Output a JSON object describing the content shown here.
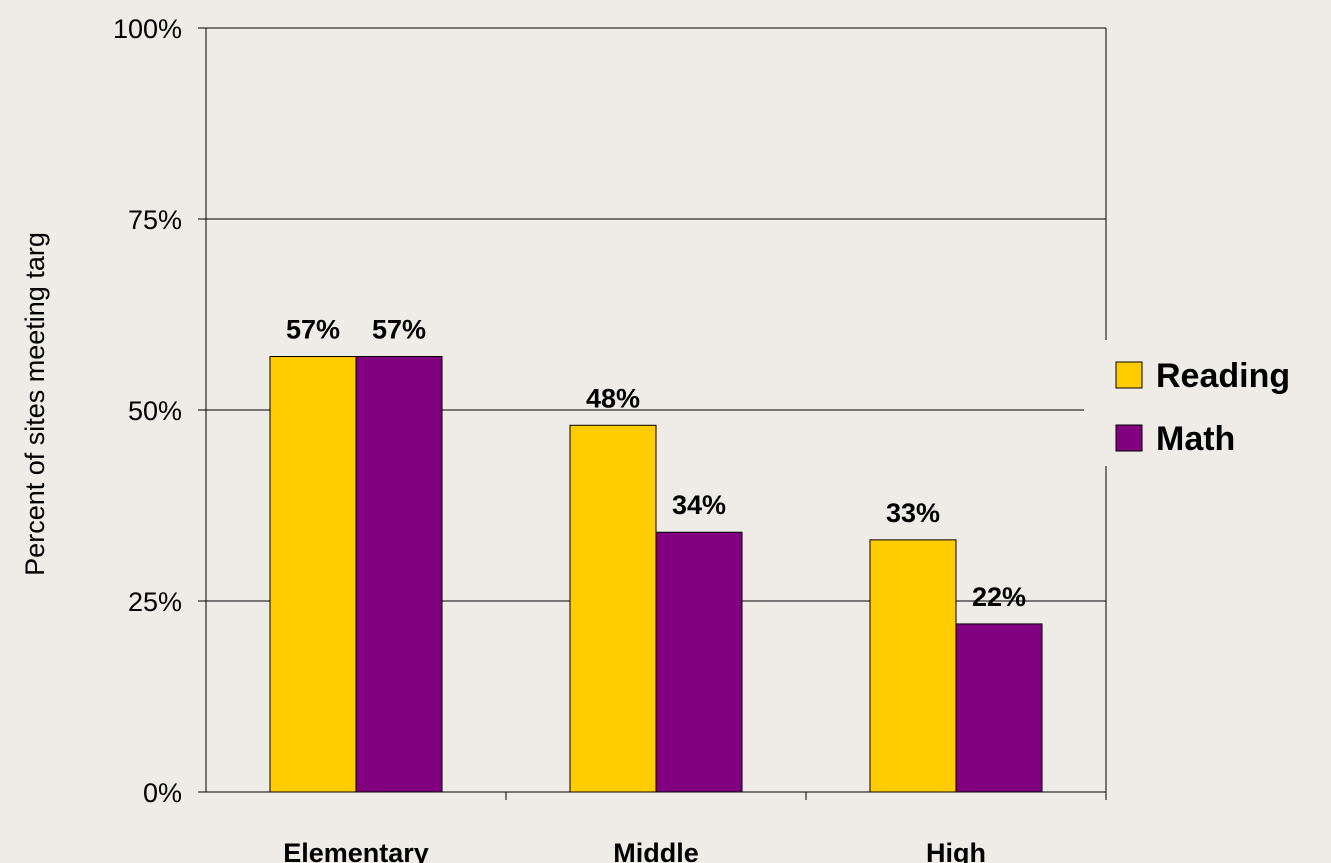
{
  "chart_data": {
    "type": "bar",
    "title": "",
    "xlabel": "",
    "ylabel": "Percent of sites meeting targ",
    "ylim": [
      0,
      100
    ],
    "yticks": [
      0,
      25,
      50,
      75,
      100
    ],
    "ytick_labels": [
      "0%",
      "25%",
      "50%",
      "75%",
      "100%"
    ],
    "categories": [
      "Elementary",
      "Middle",
      "High"
    ],
    "series": [
      {
        "name": "Reading",
        "color": "#ffcc00",
        "values": [
          57,
          48,
          33
        ],
        "labels": [
          "57%",
          "48%",
          "33%"
        ]
      },
      {
        "name": "Math",
        "color": "#800080",
        "values": [
          57,
          34,
          22
        ],
        "labels": [
          "57%",
          "34%",
          "22%"
        ]
      }
    ],
    "grid": true,
    "legend_position": "right"
  }
}
